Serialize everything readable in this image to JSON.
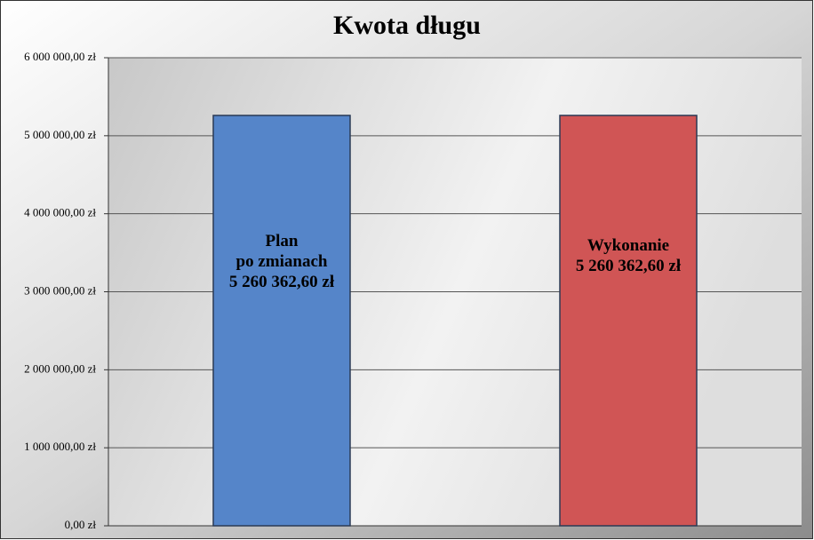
{
  "chart_data": {
    "type": "bar",
    "title": "Kwota długu",
    "categories": [
      "Plan\npo zmianach",
      "Wykonanie"
    ],
    "series": [
      {
        "values": [
          5260362.6,
          5260362.6
        ],
        "value_labels": [
          "5 260 362,60 zł",
          "5 260 362,60 zł"
        ],
        "colors": [
          "#5585c9",
          "#d05555"
        ]
      }
    ],
    "ylim": [
      0,
      6000000
    ],
    "yticks": [
      {
        "value": 0,
        "label": "0,00 zł"
      },
      {
        "value": 1000000,
        "label": "1 000 000,00 zł"
      },
      {
        "value": 2000000,
        "label": "2 000 000,00 zł"
      },
      {
        "value": 3000000,
        "label": "3 000 000,00 zł"
      },
      {
        "value": 4000000,
        "label": "4 000 000,00 zł"
      },
      {
        "value": 5000000,
        "label": "5 000 000,00 zł"
      },
      {
        "value": 6000000,
        "label": "6 000 000,00 zł"
      }
    ],
    "grid": true
  }
}
